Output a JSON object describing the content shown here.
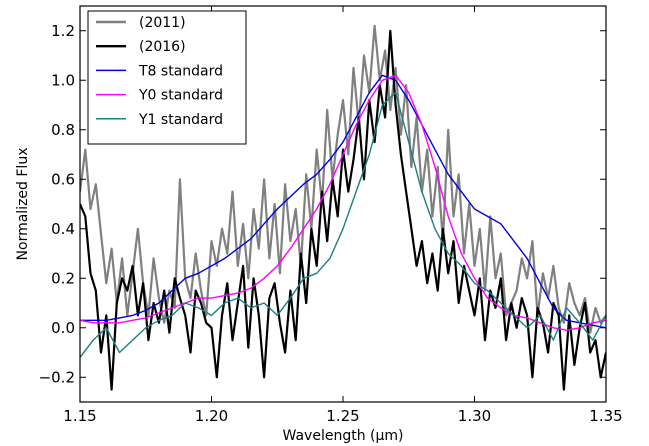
{
  "chart_data": {
    "type": "line",
    "xlabel": "Wavelength (μm)",
    "ylabel": "Normalized Flux",
    "xlim": [
      1.15,
      1.35
    ],
    "ylim": [
      -0.3,
      1.3
    ],
    "x_ticks": [
      "1.15",
      "1.20",
      "1.25",
      "1.30",
      "1.35"
    ],
    "y_ticks": [
      "−0.2",
      "0.0",
      "0.2",
      "0.4",
      "0.6",
      "0.8",
      "1.0",
      "1.2"
    ],
    "grid": false,
    "legend_position": "top-left",
    "series": [
      {
        "name": "(2011)",
        "color": "#808080",
        "x": [
          1.15,
          1.152,
          1.154,
          1.156,
          1.158,
          1.16,
          1.162,
          1.164,
          1.166,
          1.168,
          1.17,
          1.172,
          1.174,
          1.176,
          1.178,
          1.18,
          1.182,
          1.184,
          1.186,
          1.188,
          1.19,
          1.192,
          1.194,
          1.196,
          1.198,
          1.2,
          1.202,
          1.204,
          1.206,
          1.208,
          1.21,
          1.212,
          1.214,
          1.216,
          1.218,
          1.22,
          1.222,
          1.224,
          1.226,
          1.228,
          1.23,
          1.232,
          1.234,
          1.236,
          1.238,
          1.24,
          1.242,
          1.244,
          1.246,
          1.248,
          1.25,
          1.252,
          1.254,
          1.256,
          1.258,
          1.26,
          1.262,
          1.264,
          1.266,
          1.268,
          1.27,
          1.272,
          1.274,
          1.276,
          1.278,
          1.28,
          1.282,
          1.284,
          1.286,
          1.288,
          1.29,
          1.292,
          1.294,
          1.296,
          1.298,
          1.3,
          1.302,
          1.304,
          1.306,
          1.308,
          1.31,
          1.312,
          1.314,
          1.316,
          1.318,
          1.32,
          1.322,
          1.324,
          1.326,
          1.328,
          1.33,
          1.332,
          1.334,
          1.336,
          1.338,
          1.34,
          1.342,
          1.344,
          1.346,
          1.348,
          1.35
        ],
        "y": [
          0.55,
          0.72,
          0.48,
          0.58,
          0.38,
          0.18,
          0.32,
          0.1,
          0.28,
          0.05,
          0.22,
          0.4,
          0.18,
          0.05,
          0.28,
          0.12,
          0.02,
          0.15,
          0.08,
          0.6,
          0.2,
          0.12,
          0.3,
          0.15,
          0.05,
          0.35,
          0.25,
          0.4,
          0.3,
          0.55,
          0.25,
          0.42,
          0.2,
          0.48,
          0.32,
          0.6,
          0.28,
          0.5,
          0.22,
          0.58,
          0.35,
          0.48,
          0.25,
          0.62,
          0.4,
          0.72,
          0.5,
          0.88,
          0.6,
          0.78,
          0.92,
          0.7,
          1.05,
          0.82,
          1.1,
          0.95,
          1.22,
          1.0,
          1.12,
          0.88,
          1.05,
          0.78,
          0.98,
          0.65,
          0.85,
          0.55,
          0.72,
          0.45,
          0.65,
          0.35,
          0.8,
          0.45,
          0.62,
          0.3,
          0.5,
          0.25,
          0.4,
          0.15,
          0.45,
          0.2,
          0.3,
          0.05,
          0.1,
          0.15,
          0.28,
          0.2,
          0.35,
          0.05,
          0.22,
          0.12,
          0.25,
          0.08,
          0.02,
          0.18,
          0.1,
          0.05,
          0.12,
          -0.02,
          0.08,
          0.02,
          0.05
        ]
      },
      {
        "name": "(2016)",
        "color": "#000000",
        "x": [
          1.15,
          1.152,
          1.154,
          1.156,
          1.158,
          1.16,
          1.162,
          1.164,
          1.166,
          1.168,
          1.17,
          1.172,
          1.174,
          1.176,
          1.178,
          1.18,
          1.182,
          1.184,
          1.186,
          1.188,
          1.19,
          1.192,
          1.194,
          1.196,
          1.198,
          1.2,
          1.202,
          1.204,
          1.206,
          1.208,
          1.21,
          1.212,
          1.214,
          1.216,
          1.218,
          1.22,
          1.222,
          1.224,
          1.226,
          1.228,
          1.23,
          1.232,
          1.234,
          1.236,
          1.238,
          1.24,
          1.242,
          1.244,
          1.246,
          1.248,
          1.25,
          1.252,
          1.254,
          1.256,
          1.258,
          1.26,
          1.262,
          1.264,
          1.266,
          1.268,
          1.27,
          1.272,
          1.274,
          1.276,
          1.278,
          1.28,
          1.282,
          1.284,
          1.286,
          1.288,
          1.29,
          1.292,
          1.294,
          1.296,
          1.298,
          1.3,
          1.302,
          1.304,
          1.306,
          1.308,
          1.31,
          1.312,
          1.314,
          1.316,
          1.318,
          1.32,
          1.322,
          1.324,
          1.326,
          1.328,
          1.33,
          1.332,
          1.334,
          1.336,
          1.338,
          1.34,
          1.342,
          1.344,
          1.346,
          1.348,
          1.35
        ],
        "y": [
          0.5,
          0.45,
          0.22,
          0.15,
          -0.1,
          0.05,
          -0.25,
          0.1,
          0.2,
          0.15,
          0.25,
          0.05,
          0.18,
          -0.05,
          0.1,
          0.02,
          0.15,
          -0.02,
          0.2,
          0.12,
          0.05,
          -0.1,
          0.15,
          0.1,
          0.02,
          0.0,
          -0.2,
          0.05,
          0.18,
          -0.05,
          0.1,
          0.25,
          -0.08,
          0.2,
          0.05,
          -0.2,
          0.12,
          0.18,
          0.02,
          -0.1,
          0.15,
          -0.05,
          0.3,
          0.1,
          0.4,
          0.25,
          0.55,
          0.35,
          0.6,
          0.45,
          0.72,
          0.55,
          0.68,
          0.85,
          0.6,
          0.92,
          0.75,
          0.98,
          0.85,
          1.2,
          0.9,
          0.7,
          0.55,
          0.4,
          0.25,
          0.35,
          0.18,
          0.3,
          0.15,
          0.4,
          0.22,
          0.35,
          0.1,
          0.25,
          0.15,
          0.05,
          0.2,
          -0.05,
          0.15,
          0.08,
          0.2,
          -0.05,
          0.1,
          0.0,
          0.12,
          0.05,
          -0.2,
          0.08,
          0.02,
          -0.1,
          0.1,
          0.05,
          -0.25,
          0.05,
          -0.15,
          0.0,
          0.1,
          -0.1,
          -0.05,
          -0.2,
          -0.1
        ]
      },
      {
        "name": "T8 standard",
        "color": "#0000e0",
        "x": [
          1.15,
          1.155,
          1.16,
          1.165,
          1.17,
          1.175,
          1.18,
          1.185,
          1.19,
          1.195,
          1.2,
          1.205,
          1.21,
          1.215,
          1.22,
          1.225,
          1.23,
          1.235,
          1.24,
          1.245,
          1.25,
          1.255,
          1.26,
          1.265,
          1.27,
          1.275,
          1.28,
          1.285,
          1.29,
          1.295,
          1.3,
          1.305,
          1.31,
          1.315,
          1.32,
          1.325,
          1.33,
          1.335,
          1.34,
          1.345,
          1.35
        ],
        "y": [
          0.03,
          0.03,
          0.03,
          0.04,
          0.05,
          0.07,
          0.1,
          0.15,
          0.2,
          0.22,
          0.25,
          0.28,
          0.32,
          0.36,
          0.42,
          0.48,
          0.53,
          0.58,
          0.62,
          0.68,
          0.75,
          0.85,
          0.95,
          1.02,
          1.0,
          0.92,
          0.82,
          0.72,
          0.62,
          0.55,
          0.48,
          0.45,
          0.42,
          0.35,
          0.28,
          0.18,
          0.08,
          0.03,
          0.02,
          0.01,
          0.0
        ]
      },
      {
        "name": "Y0 standard",
        "color": "#ff00ff",
        "x": [
          1.15,
          1.155,
          1.16,
          1.165,
          1.17,
          1.175,
          1.18,
          1.185,
          1.19,
          1.195,
          1.2,
          1.205,
          1.21,
          1.215,
          1.22,
          1.225,
          1.23,
          1.235,
          1.24,
          1.245,
          1.25,
          1.255,
          1.26,
          1.265,
          1.27,
          1.275,
          1.28,
          1.285,
          1.29,
          1.295,
          1.3,
          1.305,
          1.31,
          1.315,
          1.32,
          1.325,
          1.33,
          1.335,
          1.34,
          1.345,
          1.35
        ],
        "y": [
          0.03,
          0.02,
          0.02,
          0.02,
          0.03,
          0.04,
          0.06,
          0.08,
          0.1,
          0.12,
          0.12,
          0.13,
          0.14,
          0.16,
          0.2,
          0.25,
          0.32,
          0.4,
          0.48,
          0.58,
          0.7,
          0.82,
          0.92,
          1.0,
          1.02,
          0.95,
          0.82,
          0.65,
          0.45,
          0.3,
          0.2,
          0.12,
          0.08,
          0.05,
          0.04,
          0.02,
          0.0,
          -0.01,
          0.0,
          0.02,
          0.03
        ]
      },
      {
        "name": "Y1 standard",
        "color": "#1a8080",
        "x": [
          1.15,
          1.155,
          1.16,
          1.165,
          1.17,
          1.175,
          1.18,
          1.185,
          1.19,
          1.195,
          1.2,
          1.205,
          1.21,
          1.215,
          1.22,
          1.225,
          1.23,
          1.235,
          1.24,
          1.245,
          1.25,
          1.255,
          1.26,
          1.265,
          1.27,
          1.275,
          1.28,
          1.285,
          1.29,
          1.295,
          1.3,
          1.305,
          1.31,
          1.315,
          1.32,
          1.325,
          1.33,
          1.335,
          1.34,
          1.345,
          1.35
        ],
        "y": [
          -0.12,
          -0.05,
          0.0,
          -0.1,
          -0.05,
          0.0,
          0.03,
          0.05,
          0.1,
          0.08,
          0.05,
          0.1,
          0.12,
          0.08,
          0.1,
          0.05,
          0.12,
          0.2,
          0.22,
          0.28,
          0.4,
          0.55,
          0.7,
          0.9,
          0.95,
          0.75,
          0.55,
          0.4,
          0.3,
          0.25,
          0.18,
          0.15,
          0.1,
          0.05,
          0.0,
          0.05,
          -0.05,
          0.08,
          0.02,
          -0.05,
          0.05
        ]
      }
    ]
  }
}
